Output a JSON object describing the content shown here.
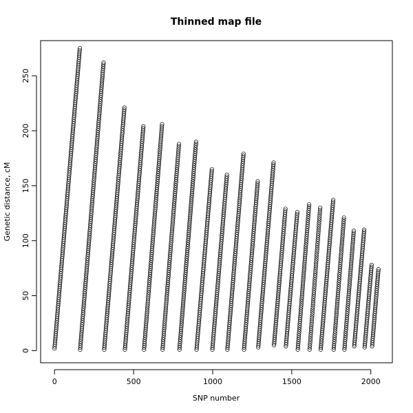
{
  "chart_data": {
    "type": "scatter",
    "title": "Thinned map file",
    "xlabel": "SNP number",
    "ylabel": "Genetic distance, cM",
    "xlim": [
      -88,
      2136
    ],
    "ylim": [
      -11,
      282
    ],
    "x_ticks": [
      0,
      500,
      1000,
      1500,
      2000
    ],
    "y_ticks": [
      0,
      50,
      100,
      150,
      200,
      250
    ],
    "x_tick_labels": [
      "0",
      "500",
      "1000",
      "1500",
      "2000"
    ],
    "y_tick_labels": [
      "0",
      "50",
      "100",
      "150",
      "200",
      "250"
    ],
    "grid": false,
    "marker": "open-circle",
    "series": [
      {
        "x_start": 0,
        "x_end": 160,
        "y_start": 2,
        "y_end": 275
      },
      {
        "x_start": 162,
        "x_end": 310,
        "y_start": 1,
        "y_end": 262
      },
      {
        "x_start": 314,
        "x_end": 442,
        "y_start": 1,
        "y_end": 221
      },
      {
        "x_start": 445,
        "x_end": 562,
        "y_start": 1,
        "y_end": 204
      },
      {
        "x_start": 566,
        "x_end": 680,
        "y_start": 1,
        "y_end": 206
      },
      {
        "x_start": 683,
        "x_end": 787,
        "y_start": 1,
        "y_end": 188
      },
      {
        "x_start": 790,
        "x_end": 895,
        "y_start": 1,
        "y_end": 190
      },
      {
        "x_start": 898,
        "x_end": 995,
        "y_start": 1,
        "y_end": 165
      },
      {
        "x_start": 998,
        "x_end": 1090,
        "y_start": 1,
        "y_end": 160
      },
      {
        "x_start": 1093,
        "x_end": 1195,
        "y_start": 1,
        "y_end": 179
      },
      {
        "x_start": 1198,
        "x_end": 1285,
        "y_start": 1,
        "y_end": 154
      },
      {
        "x_start": 1288,
        "x_end": 1385,
        "y_start": 3,
        "y_end": 171
      },
      {
        "x_start": 1388,
        "x_end": 1460,
        "y_start": 5,
        "y_end": 129
      },
      {
        "x_start": 1463,
        "x_end": 1535,
        "y_start": 4,
        "y_end": 126
      },
      {
        "x_start": 1538,
        "x_end": 1610,
        "y_start": 1,
        "y_end": 133
      },
      {
        "x_start": 1613,
        "x_end": 1680,
        "y_start": 1,
        "y_end": 130
      },
      {
        "x_start": 1683,
        "x_end": 1762,
        "y_start": 1,
        "y_end": 137
      },
      {
        "x_start": 1765,
        "x_end": 1830,
        "y_start": 1,
        "y_end": 121
      },
      {
        "x_start": 1833,
        "x_end": 1892,
        "y_start": 1,
        "y_end": 109
      },
      {
        "x_start": 1895,
        "x_end": 1958,
        "y_start": 4,
        "y_end": 110
      },
      {
        "x_start": 1961,
        "x_end": 2005,
        "y_start": 3,
        "y_end": 78
      },
      {
        "x_start": 2008,
        "x_end": 2048,
        "y_start": 4,
        "y_end": 74
      }
    ]
  }
}
